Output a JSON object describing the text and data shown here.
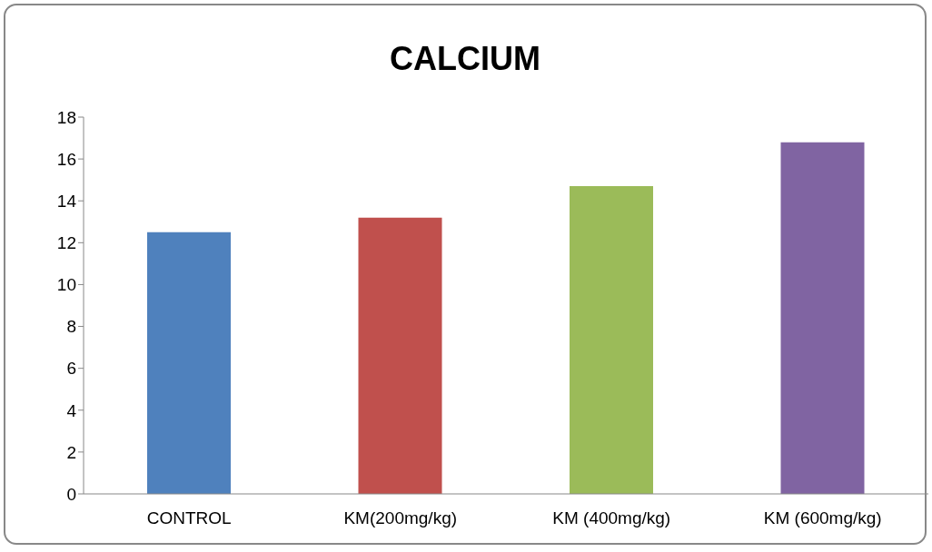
{
  "chart_data": {
    "type": "bar",
    "title": "CALCIUM",
    "categories": [
      "CONTROL",
      "KM(200mg/kg)",
      "KM (400mg/kg)",
      "KM (600mg/kg)"
    ],
    "values": [
      12.5,
      13.2,
      14.7,
      16.8
    ],
    "colors": [
      "#4f81bd",
      "#c0504d",
      "#9bbb59",
      "#8064a2"
    ],
    "ylim": [
      0,
      18
    ],
    "yticks": [
      0,
      2,
      4,
      6,
      8,
      10,
      12,
      14,
      16,
      18
    ],
    "grid": false,
    "legend": false
  }
}
